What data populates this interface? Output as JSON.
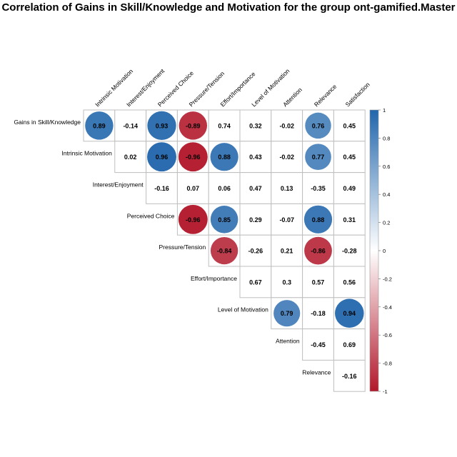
{
  "chart_data": {
    "type": "heatmap",
    "title": "Correlation of Gains in Skill/Knowledge and Motivation for the group ont-gamified.Master",
    "columns": [
      "Intrinsic Motivation",
      "Interest/Enjoyment",
      "Perceived Choice",
      "Pressure/Tension",
      "Effort/Importance",
      "Level of Motivation",
      "Attention",
      "Relevance",
      "Satisfaction"
    ],
    "rows": [
      "Gains in Skill/Knowledge",
      "Intrinsic Motivation",
      "Interest/Enjoyment",
      "Perceived Choice",
      "Pressure/Tension",
      "Effort/Importance",
      "Level of Motivation",
      "Attention",
      "Relevance"
    ],
    "values": [
      [
        0.89,
        -0.14,
        0.93,
        -0.89,
        0.74,
        0.32,
        -0.02,
        0.76,
        0.45
      ],
      [
        null,
        0.02,
        0.96,
        -0.96,
        0.88,
        0.43,
        -0.02,
        0.77,
        0.45
      ],
      [
        null,
        null,
        -0.16,
        0.07,
        0.06,
        0.47,
        0.13,
        -0.35,
        0.49
      ],
      [
        null,
        null,
        null,
        -0.96,
        0.85,
        0.29,
        -0.07,
        0.88,
        0.31
      ],
      [
        null,
        null,
        null,
        null,
        -0.84,
        -0.26,
        0.21,
        -0.86,
        -0.28
      ],
      [
        null,
        null,
        null,
        null,
        null,
        0.67,
        0.3,
        0.57,
        0.56
      ],
      [
        null,
        null,
        null,
        null,
        null,
        null,
        0.79,
        -0.18,
        0.94
      ],
      [
        null,
        null,
        null,
        null,
        null,
        null,
        null,
        -0.45,
        0.69
      ],
      [
        null,
        null,
        null,
        null,
        null,
        null,
        null,
        null,
        -0.16
      ]
    ],
    "significant": [
      [
        true,
        false,
        true,
        true,
        false,
        false,
        false,
        true,
        false
      ],
      [
        null,
        false,
        true,
        true,
        true,
        false,
        false,
        true,
        false
      ],
      [
        null,
        null,
        false,
        false,
        false,
        false,
        false,
        false,
        false
      ],
      [
        null,
        null,
        null,
        true,
        true,
        false,
        false,
        true,
        false
      ],
      [
        null,
        null,
        null,
        null,
        true,
        false,
        false,
        true,
        false
      ],
      [
        null,
        null,
        null,
        null,
        null,
        false,
        false,
        false,
        false
      ],
      [
        null,
        null,
        null,
        null,
        null,
        null,
        true,
        false,
        true
      ],
      [
        null,
        null,
        null,
        null,
        null,
        null,
        null,
        false,
        false
      ],
      [
        null,
        null,
        null,
        null,
        null,
        null,
        null,
        null,
        false
      ]
    ],
    "colorbar": {
      "ticks": [
        "1",
        "0.8",
        "0.6",
        "0.4",
        "0.2",
        "0",
        "-0.2",
        "-0.4",
        "-0.6",
        "-0.8",
        "-1"
      ],
      "range": [
        -1,
        1
      ],
      "colors": {
        "negative": "#b2182b",
        "neutral": "#ffffff",
        "positive": "#2166ac"
      },
      "placement": "right"
    }
  }
}
